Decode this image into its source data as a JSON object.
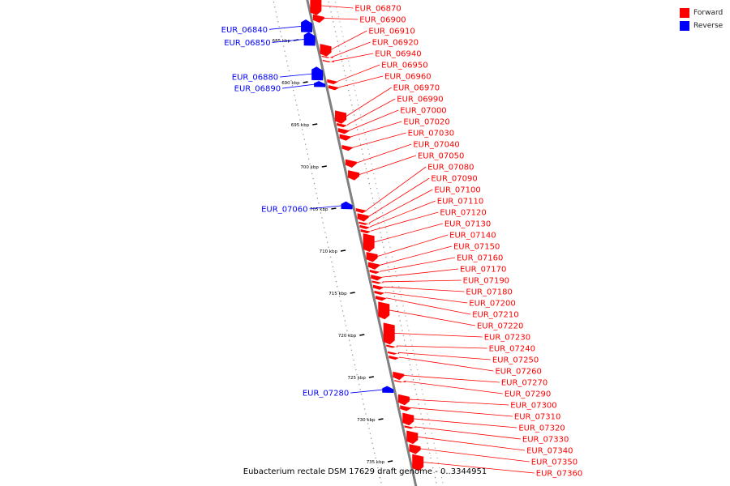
{
  "colors": {
    "forward": "#ff0000",
    "reverse": "#0000ff",
    "backbone": "#808080",
    "ticks": "#000000"
  },
  "legend": {
    "forward_label": "Forward",
    "reverse_label": "Reverse"
  },
  "caption": "Eubacterium rectale DSM 17629 draft genome - 0..3344951",
  "ticks": [
    {
      "label": "685 kbp",
      "kb": 685
    },
    {
      "label": "690 kbp",
      "kb": 690
    },
    {
      "label": "695 kbp",
      "kb": 695
    },
    {
      "label": "700 kbp",
      "kb": 700
    },
    {
      "label": "705 kbp",
      "kb": 705
    },
    {
      "label": "710 kbp",
      "kb": 710
    },
    {
      "label": "715 kbp",
      "kb": 715
    },
    {
      "label": "720 kbp",
      "kb": 720
    },
    {
      "label": "725 kbp",
      "kb": 725
    },
    {
      "label": "730 kbp",
      "kb": 730
    },
    {
      "label": "735 kbp",
      "kb": 735
    }
  ],
  "genes": [
    {
      "name": "EUR_06870",
      "strand": "forward",
      "start": 679.8,
      "end": 681.9
    },
    {
      "name": "EUR_06840",
      "strand": "reverse",
      "start": 682.6,
      "end": 684.0
    },
    {
      "name": "EUR_06900",
      "strand": "forward",
      "start": 681.9,
      "end": 682.8
    },
    {
      "name": "EUR_06850",
      "strand": "reverse",
      "start": 684.1,
      "end": 685.6
    },
    {
      "name": "EUR_06910",
      "strand": "forward",
      "start": 685.4,
      "end": 686.8
    },
    {
      "name": "EUR_06920",
      "strand": "forward",
      "start": 686.8,
      "end": 687.0
    },
    {
      "name": "EUR_06940",
      "strand": "forward",
      "start": 687.3,
      "end": 687.5
    },
    {
      "name": "EUR_06880",
      "strand": "reverse",
      "start": 688.2,
      "end": 689.7
    },
    {
      "name": "EUR_06950",
      "strand": "forward",
      "start": 689.6,
      "end": 690.1
    },
    {
      "name": "EUR_06890",
      "strand": "reverse",
      "start": 689.9,
      "end": 690.5
    },
    {
      "name": "EUR_06960",
      "strand": "forward",
      "start": 690.3,
      "end": 690.8
    },
    {
      "name": "EUR_06970",
      "strand": "forward",
      "start": 693.3,
      "end": 694.8
    },
    {
      "name": "EUR_06990",
      "strand": "forward",
      "start": 694.8,
      "end": 695.2
    },
    {
      "name": "EUR_07000",
      "strand": "forward",
      "start": 695.4,
      "end": 696.0
    },
    {
      "name": "EUR_07020",
      "strand": "forward",
      "start": 696.1,
      "end": 696.8
    },
    {
      "name": "EUR_07030",
      "strand": "forward",
      "start": 697.4,
      "end": 698.0
    },
    {
      "name": "EUR_07040",
      "strand": "forward",
      "start": 699.1,
      "end": 700.0
    },
    {
      "name": "EUR_07050",
      "strand": "forward",
      "start": 700.4,
      "end": 701.5
    },
    {
      "name": "EUR_07060",
      "strand": "reverse",
      "start": 704.2,
      "end": 705.0
    },
    {
      "name": "EUR_07080",
      "strand": "forward",
      "start": 704.9,
      "end": 705.4
    },
    {
      "name": "EUR_07090",
      "strand": "forward",
      "start": 705.5,
      "end": 706.4
    },
    {
      "name": "EUR_07100",
      "strand": "forward",
      "start": 706.5,
      "end": 706.8
    },
    {
      "name": "EUR_07110",
      "strand": "forward",
      "start": 706.9,
      "end": 707.3
    },
    {
      "name": "EUR_07120",
      "strand": "forward",
      "start": 707.4,
      "end": 707.8
    },
    {
      "name": "EUR_07130",
      "strand": "forward",
      "start": 707.9,
      "end": 710.0
    },
    {
      "name": "EUR_07140",
      "strand": "forward",
      "start": 710.1,
      "end": 711.2
    },
    {
      "name": "EUR_07150",
      "strand": "forward",
      "start": 711.3,
      "end": 712.1
    },
    {
      "name": "EUR_07160",
      "strand": "forward",
      "start": 712.2,
      "end": 712.6
    },
    {
      "name": "EUR_07170",
      "strand": "forward",
      "start": 712.8,
      "end": 713.4
    },
    {
      "name": "EUR_07190",
      "strand": "forward",
      "start": 713.5,
      "end": 713.8
    },
    {
      "name": "EUR_07180",
      "strand": "forward",
      "start": 714.0,
      "end": 714.5
    },
    {
      "name": "EUR_07200",
      "strand": "forward",
      "start": 714.7,
      "end": 715.1
    },
    {
      "name": "EUR_07210",
      "strand": "forward",
      "start": 715.3,
      "end": 715.8
    },
    {
      "name": "EUR_07220",
      "strand": "forward",
      "start": 716.0,
      "end": 718.0
    },
    {
      "name": "EUR_07230",
      "strand": "forward",
      "start": 718.5,
      "end": 721.0
    },
    {
      "name": "EUR_07240",
      "strand": "forward",
      "start": 721.1,
      "end": 721.4
    },
    {
      "name": "EUR_07250",
      "strand": "forward",
      "start": 721.9,
      "end": 722.2
    },
    {
      "name": "EUR_07260",
      "strand": "forward",
      "start": 722.4,
      "end": 722.8
    },
    {
      "name": "EUR_07270",
      "strand": "forward",
      "start": 724.3,
      "end": 725.2
    },
    {
      "name": "EUR_07290",
      "strand": "forward",
      "start": 725.3,
      "end": 725.5
    },
    {
      "name": "EUR_07280",
      "strand": "reverse",
      "start": 726.1,
      "end": 726.8
    },
    {
      "name": "EUR_07300",
      "strand": "forward",
      "start": 727.0,
      "end": 728.2
    },
    {
      "name": "EUR_07310",
      "strand": "forward",
      "start": 728.3,
      "end": 728.9
    },
    {
      "name": "EUR_07320",
      "strand": "forward",
      "start": 729.2,
      "end": 730.6
    },
    {
      "name": "EUR_07330",
      "strand": "forward",
      "start": 730.7,
      "end": 731.0
    },
    {
      "name": "EUR_07340",
      "strand": "forward",
      "start": 731.3,
      "end": 732.8
    },
    {
      "name": "EUR_07350",
      "strand": "forward",
      "start": 732.9,
      "end": 734.0
    },
    {
      "name": "EUR_07360",
      "strand": "forward",
      "start": 734.1,
      "end": 736.0
    }
  ]
}
